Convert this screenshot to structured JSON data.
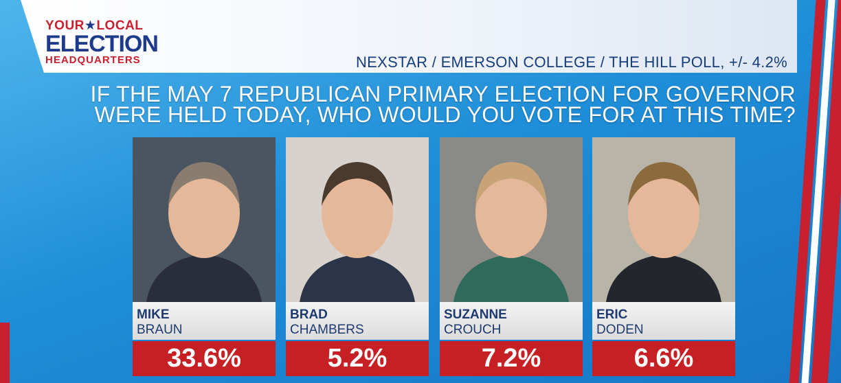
{
  "header": {
    "logo": {
      "line1_left": "YOUR",
      "line1_right": "LOCAL",
      "line2": "ELECTION",
      "line3": "HEADQUARTERS"
    },
    "source": "NEXSTAR / EMERSON COLLEGE / THE HILL POLL, +/- 4.2%"
  },
  "question": {
    "lines": [
      "IF THE MAY 7 REPUBLICAN PRIMARY ELECTION FOR GOVERNOR",
      "WERE HELD TODAY, WHO WOULD YOU VOTE FOR AT THIS TIME?"
    ]
  },
  "candidates": [
    {
      "first": "MIKE",
      "last": "BRAUN",
      "result": "33.6%"
    },
    {
      "first": "BRAD",
      "last": "CHAMBERS",
      "result": "5.2%"
    },
    {
      "first": "SUZANNE",
      "last": "CROUCH",
      "result": "7.2%"
    },
    {
      "first": "ERIC",
      "last": "DODEN",
      "result": "6.6%"
    }
  ]
}
